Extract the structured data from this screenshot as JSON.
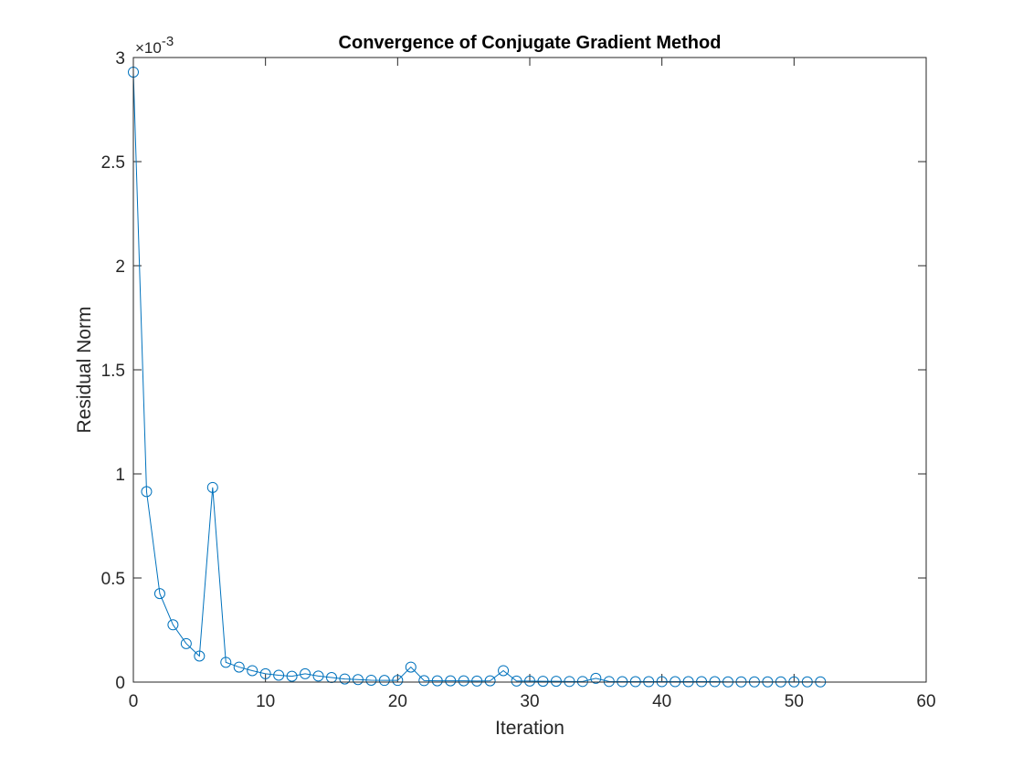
{
  "chart_data": {
    "type": "line",
    "title": "Convergence of Conjugate Gradient Method",
    "xlabel": "Iteration",
    "ylabel": "Residual Norm",
    "xlim": [
      0,
      60
    ],
    "ylim": [
      0,
      0.003
    ],
    "xticks": [
      0,
      10,
      20,
      30,
      40,
      50,
      60
    ],
    "xtick_labels": [
      "0",
      "10",
      "20",
      "30",
      "40",
      "50",
      "60"
    ],
    "yticks": [
      0,
      0.0005,
      0.001,
      0.0015,
      0.002,
      0.0025,
      0.003
    ],
    "ytick_labels": [
      "0",
      "0.5",
      "1",
      "1.5",
      "2",
      "2.5",
      "3"
    ],
    "y_exponent_label": "×10",
    "y_exponent_power": "-3",
    "grid": false,
    "legend": "none",
    "line_color": "#0072BD",
    "marker": "circle",
    "series": [
      {
        "x": [
          0,
          1,
          2,
          3,
          4,
          5,
          6,
          7,
          8,
          9,
          10,
          11,
          12,
          13,
          14,
          15,
          16,
          17,
          18,
          19,
          20,
          21,
          22,
          23,
          24,
          25,
          26,
          27,
          28,
          29,
          30,
          31,
          32,
          33,
          34,
          35,
          36,
          37,
          38,
          39,
          40,
          41,
          42,
          43,
          44,
          45,
          46,
          47,
          48,
          49,
          50,
          51,
          52
        ],
        "values": [
          0.00293,
          0.000915,
          0.000425,
          0.000275,
          0.000185,
          0.000125,
          0.000935,
          9.5e-05,
          7.2e-05,
          5.5e-05,
          4e-05,
          3.3e-05,
          2.8e-05,
          4e-05,
          2.9e-05,
          2.2e-05,
          1.5e-05,
          1.2e-05,
          9e-06,
          8e-06,
          8e-06,
          7.2e-05,
          7e-06,
          6e-06,
          6e-06,
          6e-06,
          5e-06,
          6e-06,
          5.5e-05,
          5e-06,
          5e-06,
          4e-06,
          4e-06,
          3e-06,
          3e-06,
          1.8e-05,
          3e-06,
          2e-06,
          2e-06,
          2e-06,
          2e-06,
          2e-06,
          2e-06,
          2e-06,
          2e-06,
          1e-06,
          1e-06,
          1e-06,
          1e-06,
          1e-06,
          1e-06,
          1e-06,
          1e-06
        ]
      }
    ]
  }
}
